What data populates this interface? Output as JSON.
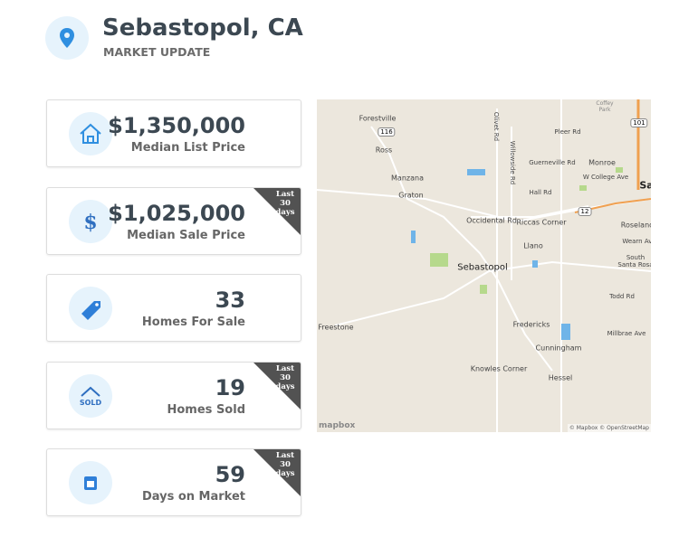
{
  "header": {
    "title": "Sebastopol, CA",
    "subtitle": "MARKET UPDATE"
  },
  "cards": [
    {
      "value": "$1,350,000",
      "label": "Median List Price"
    },
    {
      "value": "$1,025,000",
      "label": "Median Sale Price",
      "badge": "Last 30 days"
    },
    {
      "value": "33",
      "label": "Homes For Sale"
    },
    {
      "value": "19",
      "label": "Homes Sold",
      "badge": "Last 30 days",
      "icon_text": "SOLD"
    },
    {
      "value": "59",
      "label": "Days on Market",
      "badge": "Last 30 days"
    }
  ],
  "map": {
    "labels": [
      "Forestville",
      "Ross",
      "Manzana",
      "Graton",
      "Occidental Rd",
      "Riccas Corner",
      "Llano",
      "Sebastopol",
      "Freestone",
      "Fredericks",
      "Cunningham",
      "Knowles Corner",
      "Hessel",
      "Todd Rd",
      "Millbrae Ave",
      "Pleer Rd",
      "Guerneville Rd",
      "Monroe",
      "W College Ave",
      "Hall Rd",
      "Roseland",
      "Wearn Ave",
      "South Santa Rosa",
      "Coffey Park",
      "Olivet Rd",
      "Willowside Rd",
      "Sa"
    ],
    "shields": [
      "116",
      "12",
      "101"
    ],
    "logo": "mapbox",
    "attribution": "© Mapbox © OpenStreetMap"
  }
}
